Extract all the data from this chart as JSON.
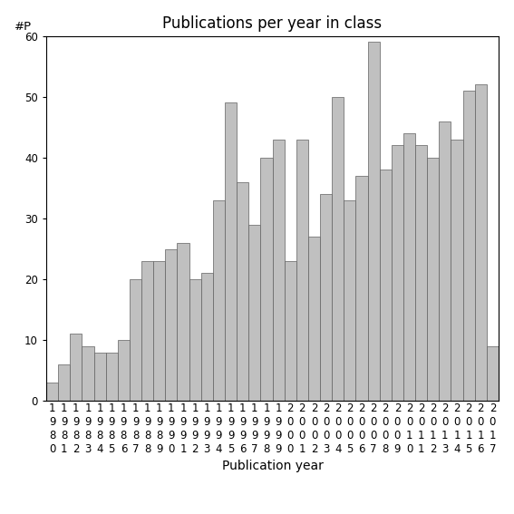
{
  "title": "Publications per year in class",
  "xlabel": "Publication year",
  "ylabel": "#P",
  "years": [
    1980,
    1981,
    1982,
    1983,
    1984,
    1985,
    1986,
    1987,
    1988,
    1989,
    1990,
    1991,
    1992,
    1993,
    1994,
    1995,
    1996,
    1997,
    1998,
    1999,
    2000,
    2001,
    2002,
    2003,
    2004,
    2005,
    2006,
    2007,
    2008,
    2009,
    2010,
    2011,
    2012,
    2013,
    2014,
    2015,
    2016,
    2017
  ],
  "values": [
    3,
    6,
    11,
    9,
    8,
    8,
    10,
    20,
    23,
    23,
    25,
    26,
    20,
    21,
    33,
    49,
    36,
    29,
    40,
    43,
    23,
    43,
    27,
    34,
    50,
    33,
    37,
    59,
    38,
    42,
    44,
    42,
    40,
    46,
    43,
    51,
    52,
    9
  ],
  "bar_color": "#c0c0c0",
  "bar_edge_color": "#606060",
  "ylim": [
    0,
    60
  ],
  "yticks": [
    0,
    10,
    20,
    30,
    40,
    50,
    60
  ],
  "background_color": "#ffffff",
  "title_fontsize": 12,
  "label_fontsize": 10,
  "tick_fontsize": 8.5
}
